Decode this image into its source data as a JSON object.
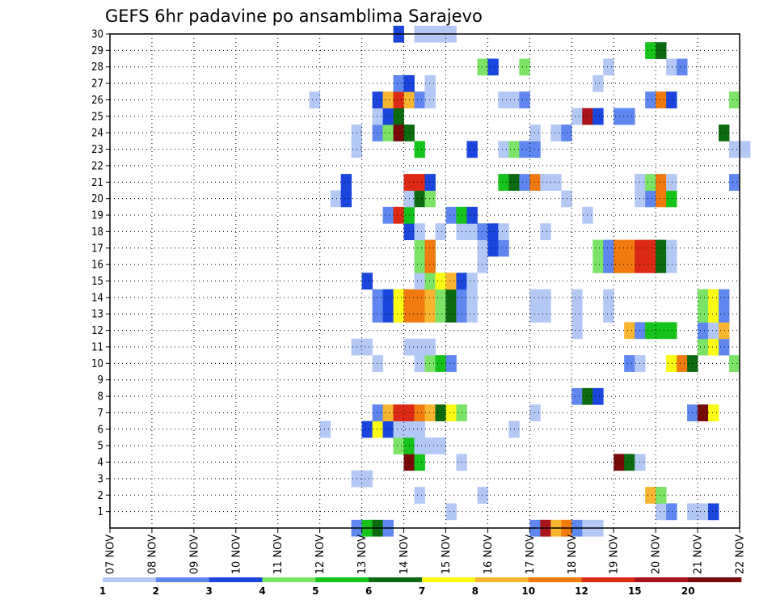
{
  "chart_data": {
    "type": "heatmap",
    "title": "GEFS 6hr padavine po ansamblima Sarajevo",
    "xlabel": "",
    "ylabel": "",
    "x_ticks": [
      "07 NOV",
      "08 NOV",
      "09 NOV",
      "10 NOV",
      "11 NOV",
      "12 NOV",
      "13 NOV",
      "14 NOV",
      "15 NOV",
      "16 NOV",
      "17 NOV",
      "18 NOV",
      "19 NOV",
      "20 NOV",
      "21 NOV",
      "22 NOV"
    ],
    "xlim": [
      0,
      60
    ],
    "y_ticks": [
      1,
      2,
      3,
      4,
      5,
      6,
      7,
      8,
      9,
      10,
      11,
      12,
      13,
      14,
      15,
      16,
      17,
      18,
      19,
      20,
      21,
      22,
      23,
      24,
      25,
      26,
      27,
      28,
      29,
      30
    ],
    "ylim": [
      0,
      30
    ],
    "grid": true,
    "legend_placement": "bottom",
    "legend": {
      "labels": [
        "1",
        "2",
        "3",
        "4",
        "5",
        "6",
        "7",
        "8",
        "10",
        "12",
        "15",
        "20"
      ],
      "colors": [
        "#b4c8f5",
        "#5f87ef",
        "#1a46dd",
        "#7be467",
        "#15c31a",
        "#0c6b10",
        "#fafa14",
        "#f8b530",
        "#f07a0e",
        "#dc2a14",
        "#a8141a",
        "#780a0a"
      ]
    },
    "palette": [
      "#b4c8f5",
      "#5f87ef",
      "#1a46dd",
      "#7be467",
      "#15c31a",
      "#0c6b10",
      "#fafa14",
      "#f8b530",
      "#f07a0e",
      "#dc2a14",
      "#a8141a",
      "#780a0a"
    ],
    "cells_note": "rows keyed by ensemble member (0..30); each entry is [start_step, color_index...] in 6-hour steps from 07 NOV 00Z",
    "rows": {
      "0": [
        [
          23,
          1,
          4,
          5,
          1
        ],
        [
          40,
          1,
          10,
          7,
          8,
          1,
          0,
          0
        ]
      ],
      "1": [
        [
          32,
          0
        ],
        [
          52,
          0
        ],
        [
          53,
          1
        ],
        [
          55,
          0
        ],
        [
          56,
          0
        ],
        [
          57,
          2
        ]
      ],
      "2": [
        [
          29,
          0
        ],
        [
          35,
          0
        ],
        [
          51,
          7,
          3
        ]
      ],
      "3": [
        [
          23,
          0,
          0
        ]
      ],
      "4": [
        [
          28,
          11,
          4
        ],
        [
          33,
          0
        ],
        [
          48,
          11,
          5,
          0
        ]
      ],
      "5": [
        [
          27,
          3,
          4
        ],
        [
          29,
          0,
          0,
          0
        ]
      ],
      "6": [
        [
          20,
          0
        ],
        [
          24,
          2,
          6,
          2,
          0,
          0,
          0
        ],
        [
          38,
          0
        ]
      ],
      "7": [
        [
          25,
          1,
          7,
          9,
          9,
          8,
          7,
          5,
          6,
          3
        ],
        [
          40,
          0
        ],
        [
          55,
          1,
          11,
          6
        ]
      ],
      "8": [
        [
          44,
          1,
          5,
          2
        ]
      ],
      "10": [
        [
          25,
          0
        ],
        [
          29,
          0,
          3,
          4,
          1
        ],
        [
          49,
          1,
          0
        ],
        [
          53,
          6,
          8,
          5
        ],
        [
          59,
          3
        ]
      ],
      "11": [
        [
          23,
          0,
          0
        ],
        [
          28,
          0,
          0,
          0
        ],
        [
          56,
          3,
          6,
          1
        ]
      ],
      "12": [
        [
          44,
          0
        ],
        [
          49,
          7,
          1,
          4,
          4,
          4
        ],
        [
          56,
          1,
          0,
          7
        ]
      ],
      "13": [
        [
          25,
          1,
          2,
          6,
          8,
          8,
          7,
          3,
          5,
          1,
          0
        ],
        [
          40,
          0,
          0
        ],
        [
          44,
          0
        ],
        [
          47,
          0
        ],
        [
          56,
          3,
          6,
          1
        ]
      ],
      "14": [
        [
          25,
          1,
          2,
          6,
          8,
          8,
          7,
          3,
          5,
          1,
          0
        ],
        [
          40,
          0,
          0
        ],
        [
          44,
          0
        ],
        [
          47,
          0
        ],
        [
          56,
          3,
          6,
          1
        ]
      ],
      "15": [
        [
          24,
          2
        ],
        [
          29,
          0,
          3,
          6,
          7,
          2,
          0
        ]
      ],
      "16": [
        [
          29,
          3,
          8
        ],
        [
          35,
          0
        ],
        [
          46,
          3,
          1,
          8,
          8,
          9,
          9,
          5,
          0
        ]
      ],
      "17": [
        [
          29,
          3,
          8
        ],
        [
          35,
          0
        ],
        [
          36,
          2,
          1
        ],
        [
          46,
          3,
          1,
          8,
          8,
          9,
          9,
          5,
          0
        ]
      ],
      "18": [
        [
          28,
          2,
          0
        ],
        [
          31,
          0
        ],
        [
          33,
          0,
          0,
          1,
          2,
          0
        ],
        [
          41,
          0
        ]
      ],
      "19": [
        [
          26,
          1,
          9,
          4
        ],
        [
          32,
          1,
          4,
          2
        ],
        [
          45,
          0
        ]
      ],
      "20": [
        [
          21,
          0,
          2
        ],
        [
          28,
          0,
          5,
          3
        ],
        [
          43,
          0
        ],
        [
          50,
          0,
          1,
          8,
          4
        ]
      ],
      "21": [
        [
          22,
          2
        ],
        [
          28,
          9,
          9,
          2
        ],
        [
          37,
          4,
          5,
          1,
          8,
          0,
          0
        ],
        [
          50,
          0,
          3,
          8,
          0
        ],
        [
          59,
          1
        ]
      ],
      "22": [],
      "23": [
        [
          23,
          0
        ],
        [
          29,
          4
        ],
        [
          34,
          2
        ],
        [
          37,
          0,
          3,
          1,
          1
        ],
        [
          59,
          0,
          0
        ]
      ],
      "24": [
        [
          23,
          0
        ],
        [
          25,
          1,
          3,
          11,
          5
        ],
        [
          40,
          0
        ],
        [
          42,
          0,
          1
        ],
        [
          58,
          5
        ]
      ],
      "25": [
        [
          25,
          0,
          2,
          5
        ],
        [
          44,
          0,
          10,
          2
        ],
        [
          48,
          1,
          1
        ]
      ],
      "26": [
        [
          19,
          0
        ],
        [
          25,
          2,
          7,
          9,
          7,
          1,
          0
        ],
        [
          37,
          0,
          0,
          1
        ],
        [
          51,
          1,
          8,
          2
        ],
        [
          59,
          3
        ]
      ],
      "27": [
        [
          27,
          1,
          2
        ],
        [
          30,
          0
        ],
        [
          46,
          0
        ]
      ],
      "28": [
        [
          35,
          3,
          2
        ],
        [
          39,
          3
        ],
        [
          47,
          0
        ],
        [
          53,
          0,
          1
        ]
      ],
      "29": [
        [
          51,
          4,
          5
        ]
      ],
      "30": [
        [
          27,
          2
        ],
        [
          29,
          0,
          0,
          0,
          0
        ]
      ]
    }
  }
}
